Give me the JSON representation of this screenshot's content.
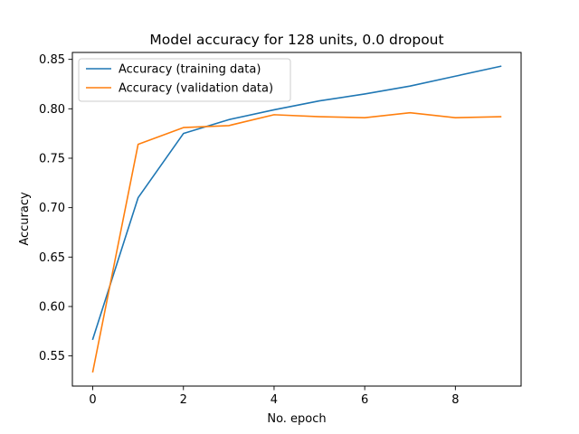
{
  "chart_data": {
    "type": "line",
    "title": "Model accuracy for 128 units, 0.0 dropout",
    "xlabel": "No. epoch",
    "ylabel": "Accuracy",
    "x": [
      0,
      1,
      2,
      3,
      4,
      5,
      6,
      7,
      8,
      9
    ],
    "xlim": [
      -0.45,
      9.45
    ],
    "ylim": [
      0.5195,
      0.857
    ],
    "xticks": [
      0,
      2,
      4,
      6,
      8
    ],
    "xtick_labels": [
      "0",
      "2",
      "4",
      "6",
      "8"
    ],
    "yticks": [
      0.55,
      0.6,
      0.65,
      0.7,
      0.75,
      0.8,
      0.85
    ],
    "ytick_labels": [
      "0.55",
      "0.60",
      "0.65",
      "0.70",
      "0.75",
      "0.80",
      "0.85"
    ],
    "grid": false,
    "legend_position": "top-left",
    "series": [
      {
        "name": "Accuracy (training data)",
        "color": "#1f77b4",
        "values": [
          0.567,
          0.71,
          0.775,
          0.789,
          0.799,
          0.808,
          0.815,
          0.823,
          0.833,
          0.843
        ]
      },
      {
        "name": "Accuracy (validation data)",
        "color": "#ff7f0e",
        "values": [
          0.534,
          0.764,
          0.781,
          0.783,
          0.794,
          0.792,
          0.791,
          0.796,
          0.791,
          0.792
        ]
      }
    ]
  }
}
